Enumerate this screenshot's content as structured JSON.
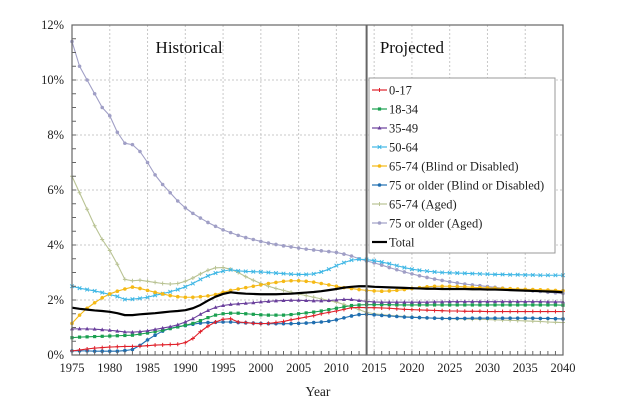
{
  "chart_data": {
    "type": "line",
    "title": "",
    "xlabel": "Year",
    "ylabel": "",
    "xlim": [
      1975,
      2040
    ],
    "ylim": [
      0,
      12
    ],
    "x_ticks": [
      "1975",
      "1980",
      "1985",
      "1990",
      "1995",
      "2000",
      "2005",
      "2010",
      "2015",
      "2020",
      "2025",
      "2030",
      "2035",
      "2040"
    ],
    "y_ticks": [
      "0%",
      "2%",
      "4%",
      "6%",
      "8%",
      "10%",
      "12%"
    ],
    "grid": true,
    "legend_position": "right-center",
    "annotations": [
      {
        "text": "Historical",
        "x": 1990.5,
        "y": 11.2
      },
      {
        "text": "Projected",
        "x": 2020,
        "y": 11.2
      }
    ],
    "divider_year": 2014,
    "x": [
      1975,
      1976,
      1977,
      1978,
      1979,
      1980,
      1981,
      1982,
      1983,
      1984,
      1985,
      1986,
      1987,
      1988,
      1989,
      1990,
      1991,
      1992,
      1993,
      1994,
      1995,
      1996,
      1997,
      1998,
      1999,
      2000,
      2001,
      2002,
      2003,
      2004,
      2005,
      2006,
      2007,
      2008,
      2009,
      2010,
      2011,
      2012,
      2013,
      2014,
      2015,
      2016,
      2017,
      2018,
      2019,
      2020,
      2021,
      2022,
      2023,
      2024,
      2025,
      2026,
      2027,
      2028,
      2029,
      2030,
      2031,
      2032,
      2033,
      2034,
      2035,
      2036,
      2037,
      2038,
      2039,
      2040
    ],
    "series": [
      {
        "name": "0-17",
        "color": "#e0202a",
        "marker": "plus",
        "values": [
          0.15,
          0.18,
          0.22,
          0.25,
          0.27,
          0.29,
          0.3,
          0.31,
          0.31,
          0.32,
          0.34,
          0.36,
          0.37,
          0.38,
          0.39,
          0.45,
          0.6,
          0.85,
          1.05,
          1.2,
          1.3,
          1.32,
          1.2,
          1.18,
          1.15,
          1.14,
          1.15,
          1.18,
          1.22,
          1.28,
          1.33,
          1.38,
          1.43,
          1.5,
          1.55,
          1.6,
          1.66,
          1.72,
          1.73,
          1.72,
          1.72,
          1.71,
          1.7,
          1.68,
          1.66,
          1.65,
          1.64,
          1.63,
          1.62,
          1.61,
          1.6,
          1.6,
          1.59,
          1.59,
          1.59,
          1.58,
          1.58,
          1.58,
          1.58,
          1.58,
          1.58,
          1.58,
          1.58,
          1.58,
          1.58,
          1.58
        ]
      },
      {
        "name": "18-34",
        "color": "#1aa050",
        "marker": "square",
        "values": [
          0.63,
          0.65,
          0.66,
          0.67,
          0.68,
          0.69,
          0.7,
          0.71,
          0.72,
          0.76,
          0.8,
          0.85,
          0.9,
          0.96,
          1.02,
          1.08,
          1.15,
          1.25,
          1.36,
          1.45,
          1.5,
          1.52,
          1.52,
          1.5,
          1.48,
          1.46,
          1.45,
          1.45,
          1.45,
          1.47,
          1.5,
          1.53,
          1.56,
          1.6,
          1.65,
          1.7,
          1.75,
          1.8,
          1.82,
          1.83,
          1.83,
          1.83,
          1.83,
          1.82,
          1.82,
          1.82,
          1.82,
          1.82,
          1.82,
          1.82,
          1.82,
          1.82,
          1.82,
          1.82,
          1.82,
          1.82,
          1.82,
          1.82,
          1.82,
          1.82,
          1.82,
          1.82,
          1.82,
          1.82,
          1.82,
          1.81
        ]
      },
      {
        "name": "35-49",
        "color": "#6a3f9c",
        "marker": "triangle",
        "values": [
          0.95,
          0.95,
          0.95,
          0.94,
          0.92,
          0.9,
          0.87,
          0.84,
          0.83,
          0.85,
          0.88,
          0.93,
          0.98,
          1.03,
          1.1,
          1.2,
          1.32,
          1.48,
          1.62,
          1.73,
          1.8,
          1.84,
          1.86,
          1.88,
          1.9,
          1.93,
          1.95,
          1.97,
          1.98,
          1.99,
          1.99,
          1.98,
          1.97,
          1.97,
          1.98,
          2.0,
          2.02,
          2.02,
          1.98,
          1.95,
          1.93,
          1.92,
          1.92,
          1.92,
          1.92,
          1.92,
          1.92,
          1.92,
          1.93,
          1.93,
          1.94,
          1.94,
          1.94,
          1.94,
          1.94,
          1.94,
          1.94,
          1.94,
          1.94,
          1.94,
          1.94,
          1.94,
          1.94,
          1.93,
          1.93,
          1.93
        ]
      },
      {
        "name": "50-64",
        "color": "#3fb7e5",
        "marker": "x",
        "values": [
          2.5,
          2.43,
          2.38,
          2.33,
          2.27,
          2.2,
          2.13,
          2.02,
          2.03,
          2.06,
          2.1,
          2.17,
          2.23,
          2.3,
          2.38,
          2.48,
          2.6,
          2.75,
          2.88,
          2.98,
          3.05,
          3.1,
          3.06,
          3.04,
          3.03,
          3.02,
          3.0,
          2.98,
          2.96,
          2.94,
          2.93,
          2.93,
          2.95,
          3.02,
          3.12,
          3.25,
          3.36,
          3.45,
          3.48,
          3.47,
          3.43,
          3.38,
          3.32,
          3.25,
          3.18,
          3.12,
          3.08,
          3.05,
          3.02,
          3.0,
          2.99,
          2.98,
          2.97,
          2.96,
          2.95,
          2.94,
          2.93,
          2.93,
          2.92,
          2.92,
          2.91,
          2.91,
          2.9,
          2.9,
          2.9,
          2.9
        ]
      },
      {
        "name": "65-74 (Blind or Disabled)",
        "color": "#f5b915",
        "marker": "dot",
        "values": [
          1.15,
          1.45,
          1.7,
          1.9,
          2.08,
          2.22,
          2.32,
          2.4,
          2.47,
          2.42,
          2.35,
          2.28,
          2.22,
          2.16,
          2.12,
          2.1,
          2.1,
          2.12,
          2.15,
          2.2,
          2.28,
          2.35,
          2.4,
          2.45,
          2.5,
          2.55,
          2.6,
          2.64,
          2.68,
          2.7,
          2.7,
          2.68,
          2.65,
          2.6,
          2.55,
          2.5,
          2.45,
          2.42,
          2.38,
          2.35,
          2.33,
          2.32,
          2.33,
          2.35,
          2.38,
          2.42,
          2.45,
          2.48,
          2.5,
          2.5,
          2.5,
          2.49,
          2.48,
          2.46,
          2.45,
          2.44,
          2.43,
          2.42,
          2.41,
          2.4,
          2.39,
          2.38,
          2.37,
          2.36,
          2.35,
          2.34
        ]
      },
      {
        "name": "75 or older (Blind or Disabled)",
        "color": "#1f6eb0",
        "marker": "diamond",
        "values": [
          0.15,
          0.15,
          0.15,
          0.14,
          0.14,
          0.14,
          0.14,
          0.16,
          0.2,
          0.35,
          0.55,
          0.72,
          0.87,
          0.97,
          1.03,
          1.07,
          1.12,
          1.16,
          1.18,
          1.19,
          1.2,
          1.2,
          1.18,
          1.17,
          1.16,
          1.15,
          1.14,
          1.14,
          1.14,
          1.14,
          1.15,
          1.16,
          1.18,
          1.2,
          1.23,
          1.28,
          1.35,
          1.42,
          1.47,
          1.48,
          1.46,
          1.44,
          1.42,
          1.4,
          1.38,
          1.37,
          1.36,
          1.35,
          1.34,
          1.33,
          1.33,
          1.33,
          1.33,
          1.34,
          1.34,
          1.34,
          1.34,
          1.34,
          1.34,
          1.34,
          1.34,
          1.34,
          1.33,
          1.33,
          1.32,
          1.31
        ]
      },
      {
        "name": "65-74 (Aged)",
        "color": "#b9c394",
        "marker": "plus",
        "values": [
          6.5,
          5.9,
          5.3,
          4.7,
          4.2,
          3.8,
          3.3,
          2.75,
          2.7,
          2.72,
          2.68,
          2.64,
          2.6,
          2.58,
          2.6,
          2.68,
          2.8,
          2.95,
          3.08,
          3.17,
          3.18,
          3.12,
          3.0,
          2.85,
          2.72,
          2.6,
          2.5,
          2.42,
          2.35,
          2.28,
          2.22,
          2.16,
          2.1,
          2.04,
          1.98,
          1.92,
          1.84,
          1.74,
          1.65,
          1.55,
          1.5,
          1.47,
          1.44,
          1.42,
          1.4,
          1.38,
          1.36,
          1.35,
          1.34,
          1.33,
          1.32,
          1.31,
          1.31,
          1.3,
          1.3,
          1.29,
          1.28,
          1.27,
          1.26,
          1.25,
          1.24,
          1.23,
          1.22,
          1.2,
          1.19,
          1.18
        ]
      },
      {
        "name": "75 or older (Aged)",
        "color": "#a09fc6",
        "marker": "dot",
        "values": [
          11.4,
          10.5,
          10.0,
          9.5,
          9.0,
          8.7,
          8.1,
          7.7,
          7.65,
          7.4,
          7.0,
          6.55,
          6.2,
          5.9,
          5.6,
          5.35,
          5.15,
          4.98,
          4.82,
          4.68,
          4.55,
          4.45,
          4.35,
          4.27,
          4.2,
          4.13,
          4.07,
          4.02,
          3.97,
          3.93,
          3.89,
          3.85,
          3.82,
          3.79,
          3.76,
          3.73,
          3.67,
          3.6,
          3.5,
          3.42,
          3.35,
          3.27,
          3.18,
          3.1,
          3.02,
          2.95,
          2.88,
          2.82,
          2.76,
          2.71,
          2.66,
          2.62,
          2.58,
          2.55,
          2.52,
          2.49,
          2.46,
          2.43,
          2.41,
          2.38,
          2.36,
          2.33,
          2.31,
          2.28,
          2.26,
          2.24
        ]
      },
      {
        "name": "Total",
        "color": "#000000",
        "marker": "none",
        "values": [
          1.72,
          1.68,
          1.65,
          1.62,
          1.6,
          1.57,
          1.52,
          1.45,
          1.45,
          1.48,
          1.5,
          1.52,
          1.55,
          1.58,
          1.6,
          1.63,
          1.7,
          1.82,
          1.98,
          2.12,
          2.22,
          2.28,
          2.25,
          2.23,
          2.22,
          2.21,
          2.21,
          2.21,
          2.22,
          2.23,
          2.25,
          2.27,
          2.29,
          2.32,
          2.36,
          2.4,
          2.45,
          2.48,
          2.5,
          2.5,
          2.48,
          2.47,
          2.46,
          2.45,
          2.44,
          2.43,
          2.42,
          2.41,
          2.41,
          2.4,
          2.4,
          2.4,
          2.4,
          2.39,
          2.39,
          2.38,
          2.38,
          2.37,
          2.36,
          2.35,
          2.34,
          2.33,
          2.32,
          2.31,
          2.3,
          2.28
        ]
      }
    ]
  }
}
